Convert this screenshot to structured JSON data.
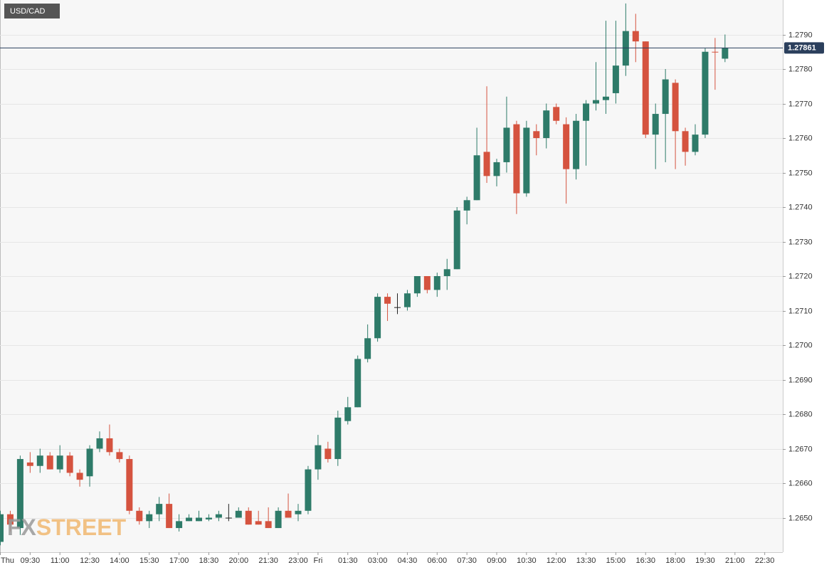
{
  "chart_data": {
    "type": "candlestick",
    "title": "USD/CAD",
    "watermark": [
      "FX",
      "STREET"
    ],
    "categories": [
      "Thu",
      null,
      null,
      "09:30",
      null,
      null,
      "11:00",
      null,
      null,
      "12:30",
      null,
      null,
      "14:00",
      null,
      null,
      "15:30",
      null,
      null,
      "17:00",
      null,
      null,
      "18:30",
      null,
      null,
      "20:00",
      null,
      null,
      "21:30",
      null,
      null,
      "23:00",
      null,
      "Fri",
      null,
      null,
      "01:30",
      null,
      null,
      "03:00",
      null,
      null,
      "04:30",
      null,
      null,
      "06:00",
      null,
      null,
      "07:30",
      null,
      null,
      "09:00",
      null,
      null,
      "10:30",
      null,
      null,
      "12:00",
      null,
      null,
      "13:30",
      null,
      null,
      "15:00",
      null,
      null,
      "16:30",
      null,
      null,
      "18:00",
      null,
      null,
      "19:30",
      null,
      null,
      "21:00",
      null,
      null,
      "22:30"
    ],
    "open": [
      1.2643,
      1.2651,
      1.2647,
      1.2666,
      1.2665,
      1.2668,
      1.2664,
      1.2668,
      1.2663,
      1.2662,
      1.267,
      1.2673,
      1.2669,
      1.2667,
      1.2652,
      1.2649,
      1.2651,
      1.2654,
      1.2647,
      1.2649,
      1.2649,
      1.26495,
      1.265,
      1.265,
      1.265,
      1.2652,
      1.2649,
      1.2649,
      1.2647,
      1.2652,
      1.2651,
      1.2652,
      1.2664,
      1.267,
      1.2667,
      1.2678,
      1.2682,
      1.2696,
      1.2702,
      1.2714,
      1.2711,
      1.2711,
      1.2715,
      1.272,
      1.2716,
      1.272,
      1.2722,
      1.2739,
      1.2742,
      1.2756,
      1.2749,
      1.2753,
      1.2764,
      1.2744,
      1.2762,
      1.276,
      1.2769,
      1.2764,
      1.2751,
      1.2765,
      1.277,
      1.2771,
      1.2773,
      1.2781,
      1.2791,
      1.2788,
      1.2761,
      1.2767,
      1.2776,
      1.2762,
      1.2756,
      1.2761,
      1.2785,
      1.2783,
      null,
      null,
      null,
      null
    ],
    "high": [
      1.2652,
      1.2652,
      1.2668,
      1.2669,
      1.267,
      1.2669,
      1.2671,
      1.2669,
      1.2664,
      1.2671,
      1.2675,
      1.2677,
      1.267,
      1.2668,
      1.2653,
      1.2652,
      1.2656,
      1.2657,
      1.2651,
      1.2651,
      1.2652,
      1.2651,
      1.2652,
      1.2654,
      1.2653,
      1.2653,
      1.2652,
      1.2653,
      1.2653,
      1.2657,
      1.2654,
      1.2665,
      1.2674,
      1.2672,
      1.2681,
      1.2685,
      1.2697,
      1.2706,
      1.2715,
      1.2715,
      1.2715,
      1.2716,
      1.272,
      1.272,
      1.2721,
      1.2725,
      1.274,
      1.2743,
      1.2763,
      1.2775,
      1.2754,
      1.2772,
      1.2765,
      1.2765,
      1.2764,
      1.277,
      1.277,
      1.2766,
      1.2767,
      1.2771,
      1.2782,
      1.2794,
      1.2794,
      1.2799,
      1.2796,
      1.2788,
      1.277,
      1.278,
      1.2777,
      1.2763,
      1.2764,
      1.2786,
      1.2789,
      1.279,
      null,
      null,
      null,
      null
    ],
    "low": [
      1.2642,
      1.2646,
      1.2645,
      1.2663,
      1.2663,
      1.2664,
      1.2663,
      1.2662,
      1.2659,
      1.2659,
      1.2669,
      1.2668,
      1.2666,
      1.2651,
      1.2648,
      1.2647,
      1.2649,
      1.2647,
      1.2646,
      1.2649,
      1.2649,
      1.2649,
      1.2649,
      1.2649,
      1.265,
      1.2648,
      1.2648,
      1.2647,
      1.2647,
      1.265,
      1.2649,
      1.2651,
      1.2661,
      1.2666,
      1.2665,
      1.2677,
      1.2682,
      1.2695,
      1.2701,
      1.2707,
      1.2709,
      1.271,
      1.2714,
      1.2715,
      1.2714,
      1.2716,
      1.2722,
      1.2735,
      1.2742,
      1.2747,
      1.2746,
      1.275,
      1.2738,
      1.2743,
      1.2755,
      1.2757,
      1.2764,
      1.2741,
      1.2748,
      1.2752,
      1.2768,
      1.2767,
      1.277,
      1.2778,
      1.2782,
      1.276,
      1.2751,
      1.2753,
      1.2751,
      1.2752,
      1.2755,
      1.276,
      1.2774,
      1.2782,
      null,
      null,
      null,
      null
    ],
    "close": [
      1.2651,
      1.2648,
      1.2667,
      1.2665,
      1.2668,
      1.2664,
      1.2668,
      1.2663,
      1.2661,
      1.267,
      1.2673,
      1.2669,
      1.2667,
      1.2652,
      1.2649,
      1.2651,
      1.2654,
      1.2647,
      1.2649,
      1.265,
      1.265,
      1.265,
      1.2651,
      1.265,
      1.2652,
      1.2648,
      1.2648,
      1.2647,
      1.2652,
      1.265,
      1.2652,
      1.2664,
      1.2671,
      1.2667,
      1.2679,
      1.2682,
      1.2696,
      1.2702,
      1.2714,
      1.2712,
      1.2711,
      1.2715,
      1.272,
      1.2716,
      1.272,
      1.2722,
      1.2739,
      1.2742,
      1.2755,
      1.2749,
      1.2753,
      1.2763,
      1.2744,
      1.2763,
      1.276,
      1.2768,
      1.2765,
      1.2751,
      1.2765,
      1.277,
      1.2771,
      1.2772,
      1.2781,
      1.2791,
      1.2788,
      1.2761,
      1.2767,
      1.2777,
      1.2762,
      1.2756,
      1.2761,
      1.2785,
      1.27848,
      1.27861,
      null,
      null,
      null,
      null
    ],
    "up_color": "#2e7b69",
    "down_color": "#d5533f",
    "doji_color": "#222222",
    "current_price": 1.27861,
    "ylim": [
      1.264,
      1.28
    ],
    "yticks": [
      {
        "value": 1.265,
        "label": "1.2650"
      },
      {
        "value": 1.266,
        "label": "1.2660"
      },
      {
        "value": 1.267,
        "label": "1.2670"
      },
      {
        "value": 1.268,
        "label": "1.2680"
      },
      {
        "value": 1.269,
        "label": "1.2690"
      },
      {
        "value": 1.27,
        "label": "1.2700"
      },
      {
        "value": 1.271,
        "label": "1.2710"
      },
      {
        "value": 1.272,
        "label": "1.2720"
      },
      {
        "value": 1.273,
        "label": "1.2730"
      },
      {
        "value": 1.274,
        "label": "1.2740"
      },
      {
        "value": 1.275,
        "label": "1.2750"
      },
      {
        "value": 1.276,
        "label": "1.2760"
      },
      {
        "value": 1.277,
        "label": "1.2770"
      },
      {
        "value": 1.278,
        "label": "1.2780"
      },
      {
        "value": 1.279,
        "label": "1.2790"
      }
    ],
    "grid": true
  }
}
